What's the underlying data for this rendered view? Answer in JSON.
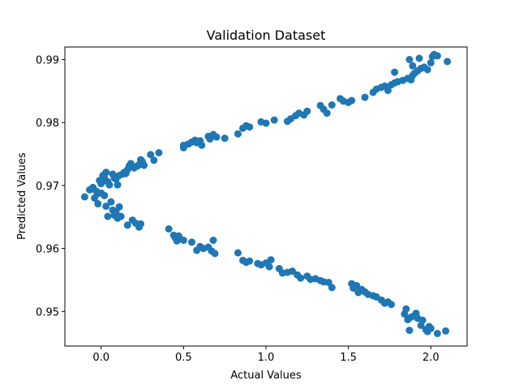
{
  "chart_data": {
    "type": "scatter",
    "title": "Validation Dataset",
    "xlabel": "Actual Values",
    "ylabel": "Predicted Values",
    "xlim": [
      -0.22,
      2.22
    ],
    "ylim": [
      0.9445,
      0.992
    ],
    "xticks": [
      0.0,
      0.5,
      1.0,
      1.5,
      2.0
    ],
    "xtick_labels": [
      "0.0",
      "0.5",
      "1.0",
      "1.5",
      "2.0"
    ],
    "yticks": [
      0.95,
      0.96,
      0.97,
      0.98,
      0.99
    ],
    "ytick_labels": [
      "0.95",
      "0.96",
      "0.97",
      "0.98",
      "0.99"
    ],
    "grid": false,
    "marker_color": "#1f77b4",
    "series": [
      {
        "values": [
          [
            -0.1,
            0.9682
          ],
          [
            -0.05,
            0.9697
          ],
          [
            -0.03,
            0.9691
          ],
          [
            -0.02,
            0.9687
          ],
          [
            -0.01,
            0.9708
          ],
          [
            0.0,
            0.9703
          ],
          [
            0.01,
            0.9716
          ],
          [
            0.02,
            0.9712
          ],
          [
            0.03,
            0.9721
          ],
          [
            0.04,
            0.9706
          ],
          [
            0.05,
            0.9701
          ],
          [
            0.07,
            0.9718
          ],
          [
            0.08,
            0.9712
          ],
          [
            0.09,
            0.971
          ],
          [
            0.1,
            0.9701
          ],
          [
            0.11,
            0.9716
          ],
          [
            0.13,
            0.9718
          ],
          [
            0.14,
            0.9721
          ],
          [
            0.15,
            0.9719
          ],
          [
            0.16,
            0.9725
          ],
          [
            0.17,
            0.9731
          ],
          [
            0.18,
            0.9735
          ],
          [
            0.2,
            0.9728
          ],
          [
            0.22,
            0.9731
          ],
          [
            0.23,
            0.9733
          ],
          [
            0.24,
            0.9741
          ],
          [
            0.25,
            0.9738
          ],
          [
            0.26,
            0.9732
          ],
          [
            0.3,
            0.9749
          ],
          [
            0.32,
            0.974
          ],
          [
            0.35,
            0.9752
          ],
          [
            0.5,
            0.9764
          ],
          [
            0.5,
            0.976
          ],
          [
            0.53,
            0.9766
          ],
          [
            0.55,
            0.9769
          ],
          [
            0.57,
            0.9772
          ],
          [
            0.58,
            0.9768
          ],
          [
            0.6,
            0.9771
          ],
          [
            0.61,
            0.9764
          ],
          [
            0.65,
            0.9778
          ],
          [
            0.66,
            0.9774
          ],
          [
            0.68,
            0.9781
          ],
          [
            0.7,
            0.9777
          ],
          [
            0.75,
            0.9775
          ],
          [
            0.83,
            0.9782
          ],
          [
            0.86,
            0.9791
          ],
          [
            0.88,
            0.9795
          ],
          [
            0.9,
            0.9793
          ],
          [
            0.97,
            0.9801
          ],
          [
            1.0,
            0.9799
          ],
          [
            1.05,
            0.9804
          ],
          [
            1.13,
            0.9802
          ],
          [
            1.15,
            0.9806
          ],
          [
            1.18,
            0.9811
          ],
          [
            1.2,
            0.9815
          ],
          [
            1.23,
            0.9812
          ],
          [
            1.25,
            0.9818
          ],
          [
            1.33,
            0.9827
          ],
          [
            1.35,
            0.9821
          ],
          [
            1.37,
            0.9815
          ],
          [
            1.4,
            0.9828
          ],
          [
            1.45,
            0.9838
          ],
          [
            1.47,
            0.9834
          ],
          [
            1.5,
            0.9832
          ],
          [
            1.52,
            0.9835
          ],
          [
            1.6,
            0.984
          ],
          [
            1.65,
            0.9848
          ],
          [
            1.67,
            0.9853
          ],
          [
            1.7,
            0.9856
          ],
          [
            1.72,
            0.9858
          ],
          [
            1.74,
            0.9851
          ],
          [
            1.76,
            0.986
          ],
          [
            1.78,
            0.9863
          ],
          [
            1.8,
            0.9865
          ],
          [
            1.83,
            0.9867
          ],
          [
            1.86,
            0.987
          ],
          [
            1.88,
            0.9868
          ],
          [
            1.89,
            0.9875
          ],
          [
            1.9,
            0.9878
          ],
          [
            1.92,
            0.9882
          ],
          [
            1.94,
            0.9886
          ],
          [
            1.96,
            0.9888
          ],
          [
            1.98,
            0.9884
          ],
          [
            2.0,
            0.9895
          ],
          [
            2.01,
            0.9905
          ],
          [
            2.02,
            0.9908
          ],
          [
            2.04,
            0.9906
          ],
          [
            2.1,
            0.9897
          ],
          [
            1.87,
            0.99
          ],
          [
            1.93,
            0.9902
          ],
          [
            1.78,
            0.988
          ],
          [
            1.89,
            0.989
          ],
          [
            -0.07,
            0.9693
          ],
          [
            -0.04,
            0.968
          ],
          [
            -0.02,
            0.9671
          ],
          [
            0.0,
            0.9688
          ],
          [
            0.02,
            0.9684
          ],
          [
            0.03,
            0.9667
          ],
          [
            0.04,
            0.9651
          ],
          [
            0.06,
            0.9674
          ],
          [
            0.07,
            0.9661
          ],
          [
            0.08,
            0.9653
          ],
          [
            0.09,
            0.9658
          ],
          [
            0.1,
            0.9648
          ],
          [
            0.11,
            0.9666
          ],
          [
            0.12,
            0.9651
          ],
          [
            0.16,
            0.9637
          ],
          [
            0.19,
            0.9645
          ],
          [
            0.21,
            0.964
          ],
          [
            0.23,
            0.9634
          ],
          [
            0.24,
            0.9639
          ],
          [
            0.41,
            0.9631
          ],
          [
            0.44,
            0.9621
          ],
          [
            0.45,
            0.9617
          ],
          [
            0.46,
            0.9612
          ],
          [
            0.47,
            0.962
          ],
          [
            0.48,
            0.9615
          ],
          [
            0.5,
            0.9613
          ],
          [
            0.55,
            0.961
          ],
          [
            0.58,
            0.9597
          ],
          [
            0.6,
            0.9603
          ],
          [
            0.62,
            0.96
          ],
          [
            0.65,
            0.9602
          ],
          [
            0.67,
            0.9596
          ],
          [
            0.68,
            0.9613
          ],
          [
            0.69,
            0.9592
          ],
          [
            0.83,
            0.9593
          ],
          [
            0.86,
            0.9581
          ],
          [
            0.88,
            0.9578
          ],
          [
            0.9,
            0.958
          ],
          [
            0.95,
            0.9576
          ],
          [
            0.97,
            0.9574
          ],
          [
            1.0,
            0.9577
          ],
          [
            1.02,
            0.9571
          ],
          [
            1.03,
            0.9582
          ],
          [
            1.08,
            0.9568
          ],
          [
            1.1,
            0.9561
          ],
          [
            1.13,
            0.9562
          ],
          [
            1.16,
            0.9564
          ],
          [
            1.19,
            0.9558
          ],
          [
            1.21,
            0.9553
          ],
          [
            1.25,
            0.9556
          ],
          [
            1.27,
            0.9551
          ],
          [
            1.3,
            0.9552
          ],
          [
            1.33,
            0.9549
          ],
          [
            1.35,
            0.9547
          ],
          [
            1.38,
            0.9546
          ],
          [
            1.4,
            0.9538
          ],
          [
            1.52,
            0.9544
          ],
          [
            1.53,
            0.9537
          ],
          [
            1.55,
            0.9541
          ],
          [
            1.56,
            0.953
          ],
          [
            1.58,
            0.9535
          ],
          [
            1.6,
            0.9531
          ],
          [
            1.62,
            0.9527
          ],
          [
            1.65,
            0.9525
          ],
          [
            1.67,
            0.9523
          ],
          [
            1.7,
            0.9518
          ],
          [
            1.72,
            0.9513
          ],
          [
            1.74,
            0.9515
          ],
          [
            1.76,
            0.9511
          ],
          [
            1.84,
            0.9496
          ],
          [
            1.85,
            0.9504
          ],
          [
            1.86,
            0.9487
          ],
          [
            1.87,
            0.947
          ],
          [
            1.88,
            0.9491
          ],
          [
            1.9,
            0.9493
          ],
          [
            1.92,
            0.9489
          ],
          [
            1.94,
            0.9478
          ],
          [
            1.95,
            0.9486
          ],
          [
            1.97,
            0.9471
          ],
          [
            1.98,
            0.9468
          ],
          [
            2.0,
            0.9473
          ],
          [
            2.04,
            0.9465
          ],
          [
            2.09,
            0.9469
          ],
          [
            1.91,
            0.9497
          ],
          [
            1.99,
            0.9476
          ]
        ]
      }
    ]
  }
}
